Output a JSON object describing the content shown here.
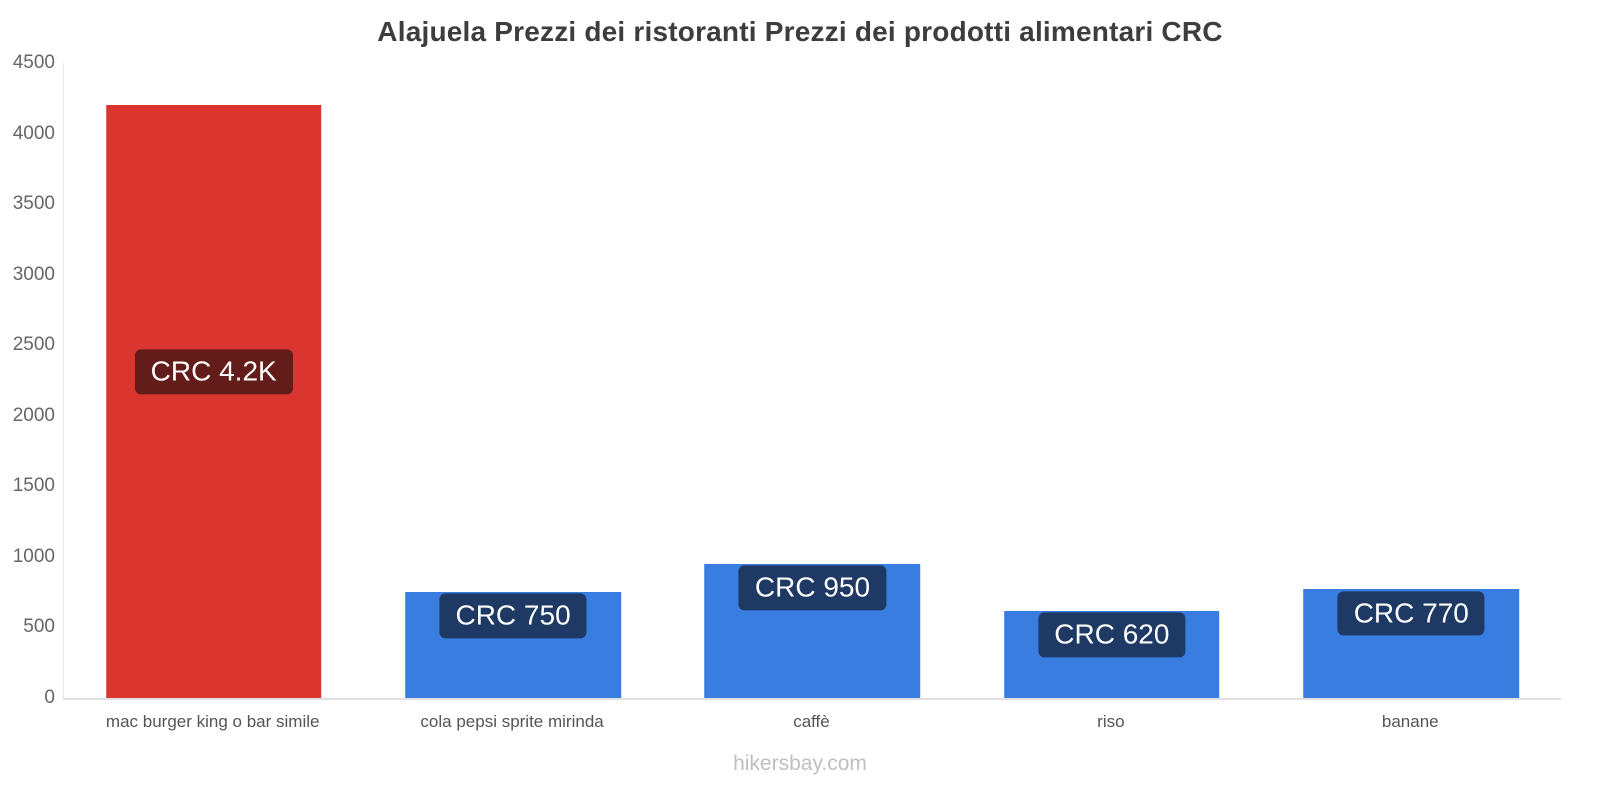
{
  "footer": "hikersbay.com",
  "chart_data": {
    "type": "bar",
    "title": "Alajuela Prezzi dei ristoranti Prezzi dei prodotti alimentari CRC",
    "categories": [
      "mac burger king o bar simile",
      "cola pepsi sprite mirinda",
      "caffè",
      "riso",
      "banane"
    ],
    "values": [
      4200,
      750,
      950,
      620,
      770
    ],
    "value_labels": [
      "CRC 4.2K",
      "CRC 750",
      "CRC 950",
      "CRC 620",
      "CRC 770"
    ],
    "bar_colors": [
      "#db352f",
      "#3a7de0",
      "#3a7de0",
      "#3a7de0",
      "#3a7de0"
    ],
    "currency": "CRC",
    "xlabel": "",
    "ylabel": "",
    "ylim": [
      0,
      4500
    ],
    "ytick_step": 500,
    "grid": false,
    "legend": false
  }
}
